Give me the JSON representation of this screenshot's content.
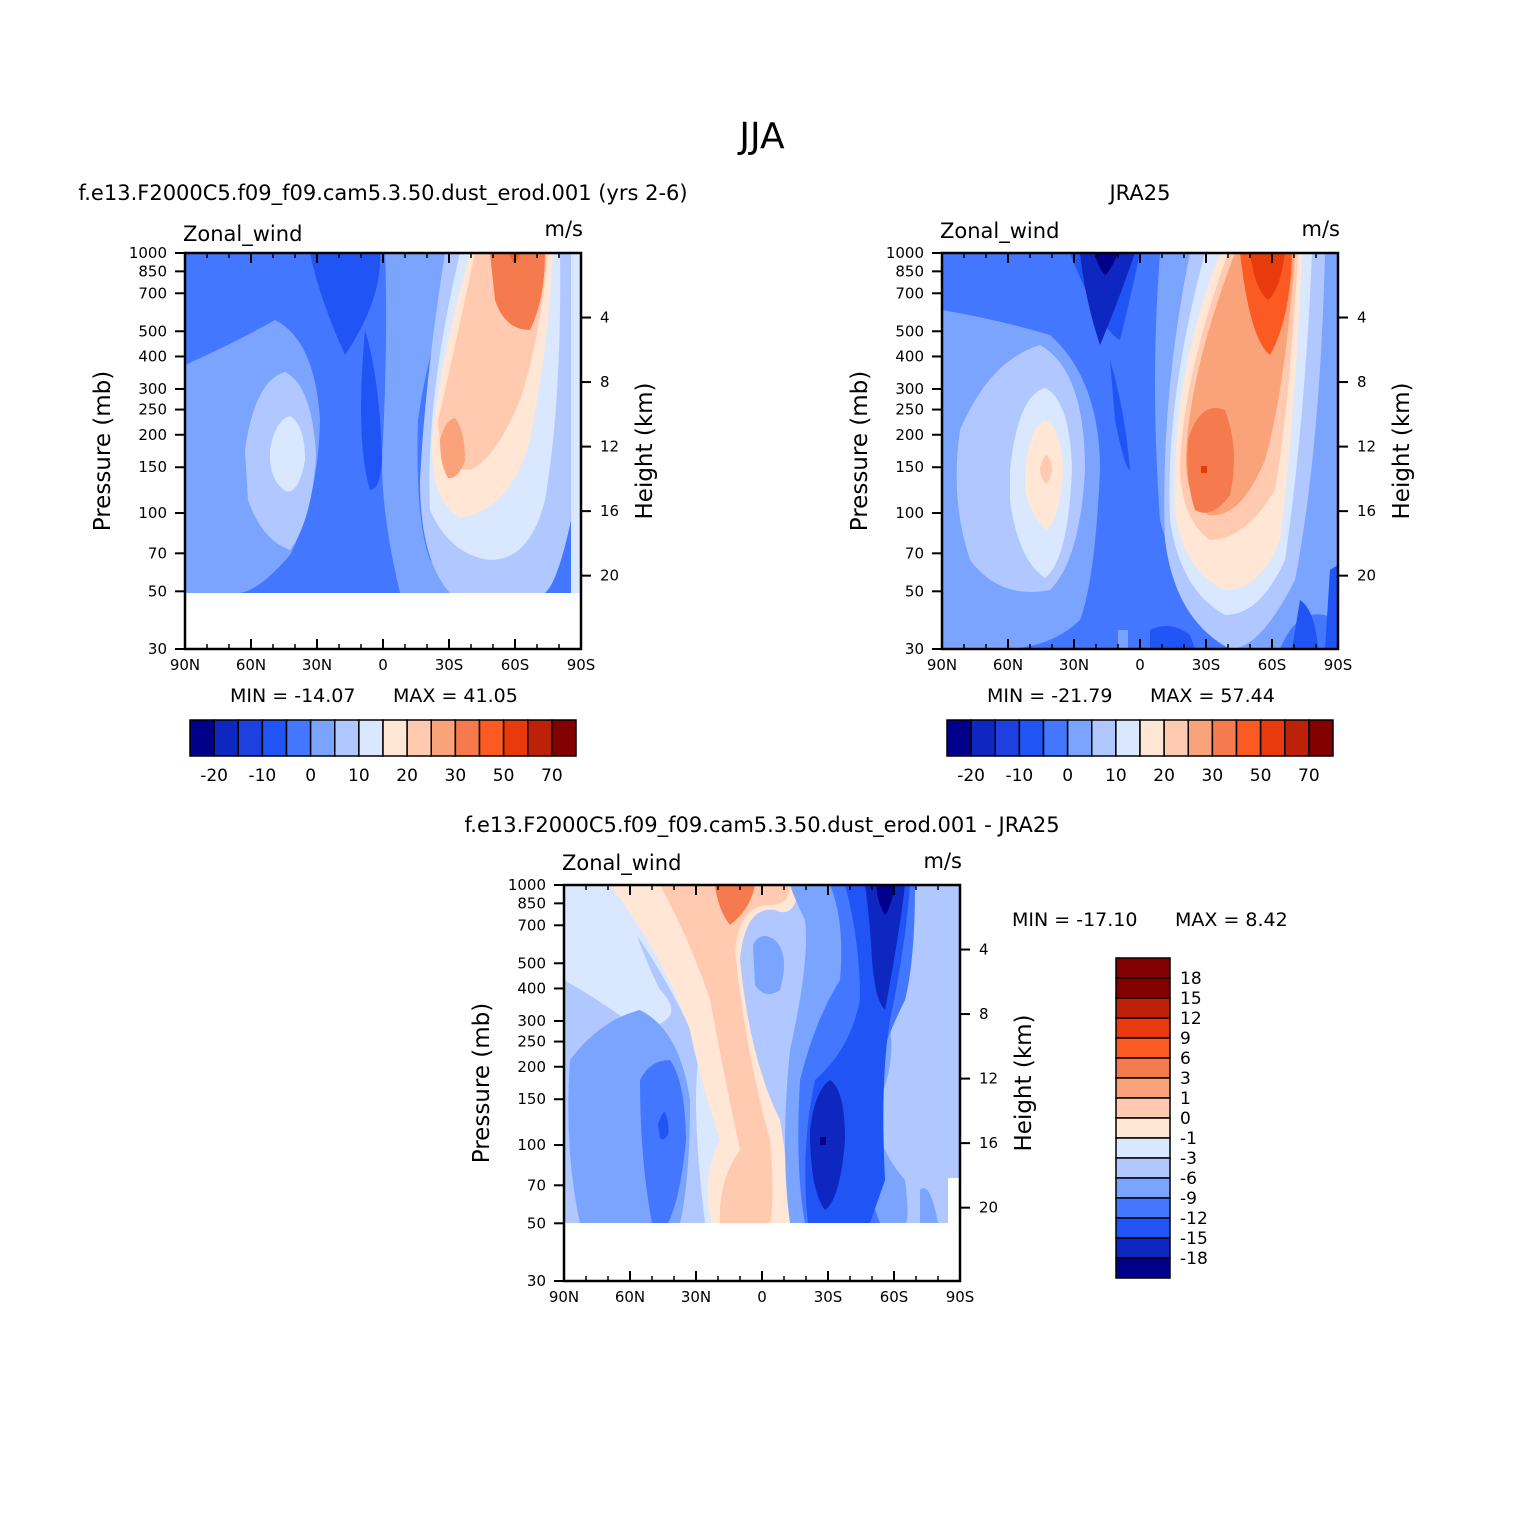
{
  "figure": {
    "title": "JJA"
  },
  "chart_data": [
    {
      "type": "contour",
      "id": "model",
      "title": "f.e13.F2000C5.f09_f09.cam5.3.50.dust_erod.001 (yrs 2-6)",
      "left_label": "Zonal_wind",
      "right_label": "m/s",
      "xlabel": "",
      "ylabel": "Pressure (mb)",
      "ylabel_right": "Height (km)",
      "x_ticks": [
        "90N",
        "60N",
        "30N",
        "0",
        "30S",
        "60S",
        "90S"
      ],
      "y_ticks": [
        "30",
        "50",
        "70",
        "100",
        "150",
        "200",
        "250",
        "300",
        "400",
        "500",
        "700",
        "850",
        "1000"
      ],
      "y_right_ticks": [
        "4",
        "8",
        "12",
        "16",
        "20"
      ],
      "ylim": [
        1000,
        30
      ],
      "xlim": [
        90,
        -90
      ],
      "min_label": "MIN = -14.07",
      "max_label": "MAX = 41.05",
      "colorbar_levels": [
        "-20",
        "-10",
        "0",
        "10",
        "20",
        "30",
        "50",
        "70"
      ],
      "colors": [
        "#00008b",
        "#0d27c0",
        "#1f40e0",
        "#2154f5",
        "#4477ff",
        "#7ba4ff",
        "#b0c8ff",
        "#d9e8ff",
        "#ffe6d5",
        "#ffcab0",
        "#faa37a",
        "#f57b4e",
        "#fb5b22",
        "#e93a0d",
        "#bd2208",
        "#830000"
      ]
    },
    {
      "type": "contour",
      "id": "obs",
      "title": "JRA25",
      "left_label": "Zonal_wind",
      "right_label": "m/s",
      "xlabel": "",
      "ylabel": "Pressure (mb)",
      "ylabel_right": "Height (km)",
      "x_ticks": [
        "90N",
        "60N",
        "30N",
        "0",
        "30S",
        "60S",
        "90S"
      ],
      "y_ticks": [
        "30",
        "50",
        "70",
        "100",
        "150",
        "200",
        "250",
        "300",
        "400",
        "500",
        "700",
        "850",
        "1000"
      ],
      "y_right_ticks": [
        "4",
        "8",
        "12",
        "16",
        "20"
      ],
      "ylim": [
        1000,
        30
      ],
      "xlim": [
        90,
        -90
      ],
      "min_label": "MIN = -21.79",
      "max_label": "MAX = 57.44",
      "colorbar_levels": [
        "-20",
        "-10",
        "0",
        "10",
        "20",
        "30",
        "50",
        "70"
      ],
      "colors": [
        "#00008b",
        "#0d27c0",
        "#1f40e0",
        "#2154f5",
        "#4477ff",
        "#7ba4ff",
        "#b0c8ff",
        "#d9e8ff",
        "#ffe6d5",
        "#ffcab0",
        "#faa37a",
        "#f57b4e",
        "#fb5b22",
        "#e93a0d",
        "#bd2208",
        "#830000"
      ]
    },
    {
      "type": "contour",
      "id": "diff",
      "title": "f.e13.F2000C5.f09_f09.cam5.3.50.dust_erod.001 - JRA25",
      "left_label": "Zonal_wind",
      "right_label": "m/s",
      "xlabel": "",
      "ylabel": "Pressure (mb)",
      "ylabel_right": "Height (km)",
      "x_ticks": [
        "90N",
        "60N",
        "30N",
        "0",
        "30S",
        "60S",
        "90S"
      ],
      "y_ticks": [
        "30",
        "50",
        "70",
        "100",
        "150",
        "200",
        "250",
        "300",
        "400",
        "500",
        "700",
        "850",
        "1000"
      ],
      "y_right_ticks": [
        "4",
        "8",
        "12",
        "16",
        "20"
      ],
      "ylim": [
        1000,
        30
      ],
      "xlim": [
        90,
        -90
      ],
      "min_label": "MIN = -17.10",
      "max_label": "MAX = 8.42",
      "colorbar_levels": [
        "18",
        "15",
        "12",
        "9",
        "6",
        "3",
        "1",
        "0",
        "-1",
        "-3",
        "-6",
        "-9",
        "-12",
        "-15",
        "-18"
      ],
      "colors": [
        "#830000",
        "#bd2208",
        "#e93a0d",
        "#fb5b22",
        "#f57b4e",
        "#faa37a",
        "#ffcab0",
        "#ffe6d5",
        "#d9e8ff",
        "#b0c8ff",
        "#7ba4ff",
        "#4477ff",
        "#2154f5",
        "#0d27c0",
        "#00008b"
      ]
    }
  ]
}
